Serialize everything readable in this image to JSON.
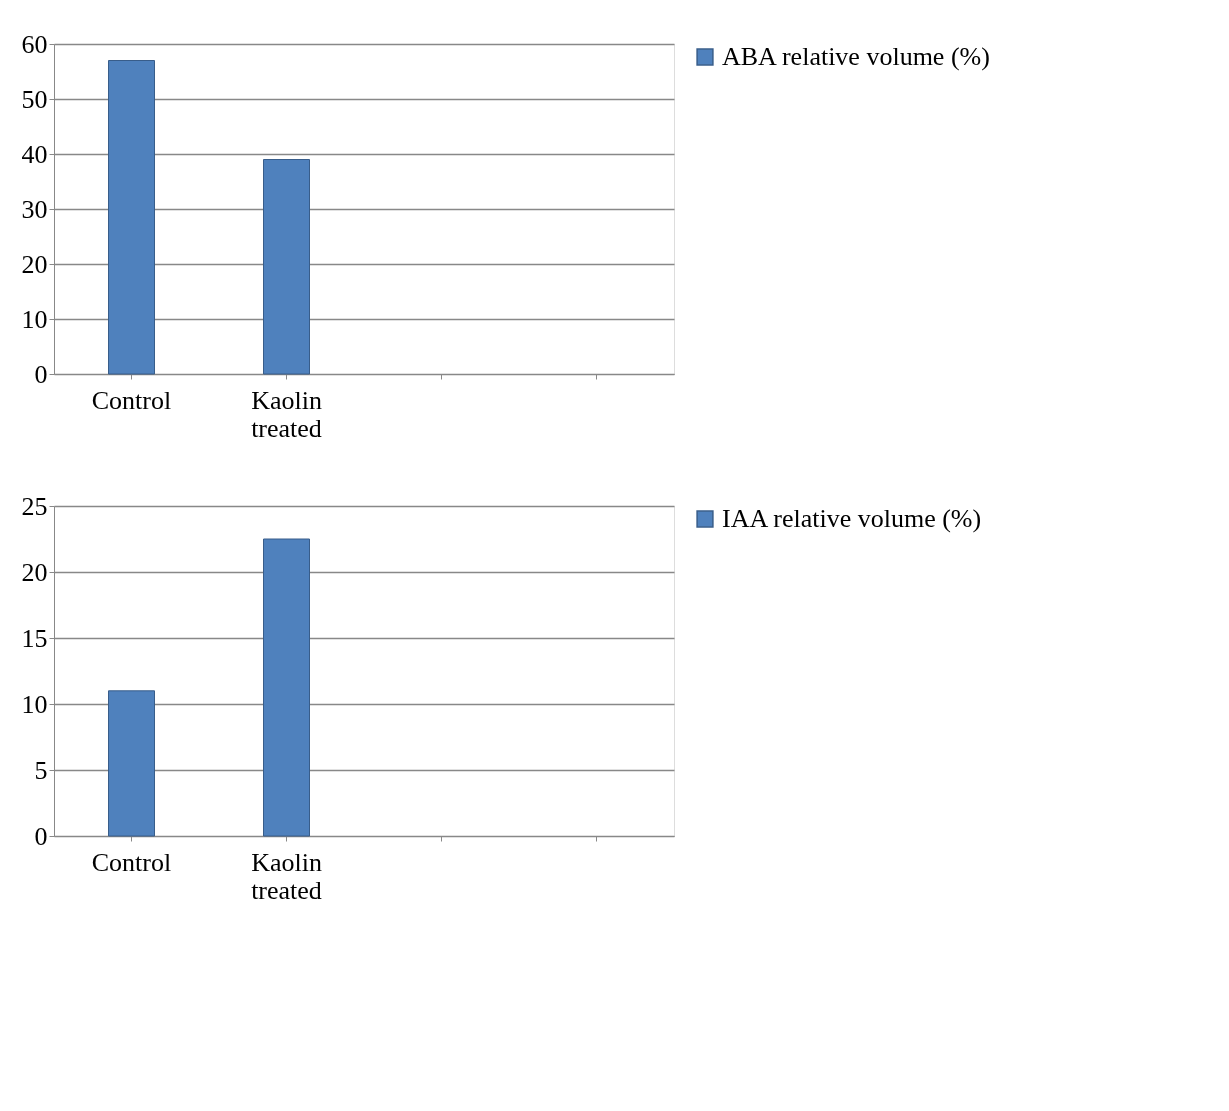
{
  "chart_data": [
    {
      "type": "bar",
      "categories": [
        "Control",
        "Kaolin treated",
        null,
        null
      ],
      "series": [
        {
          "name": "ABA relative volume (%)",
          "color": "#4f81bd",
          "values": [
            57,
            39,
            null,
            null
          ]
        }
      ],
      "ylim": [
        0,
        60
      ],
      "yticks": [
        0,
        10,
        20,
        30,
        40,
        50,
        60
      ],
      "grid": "y",
      "legend": "right"
    },
    {
      "type": "bar",
      "categories": [
        "Control",
        "Kaolin treated",
        null,
        null
      ],
      "series": [
        {
          "name": "IAA relative volume (%)",
          "color": "#4f81bd",
          "values": [
            11,
            22.5,
            null,
            null
          ]
        }
      ],
      "ylim": [
        0,
        25
      ],
      "yticks": [
        0,
        5,
        10,
        15,
        20,
        25
      ],
      "grid": "y",
      "legend": "right"
    }
  ]
}
